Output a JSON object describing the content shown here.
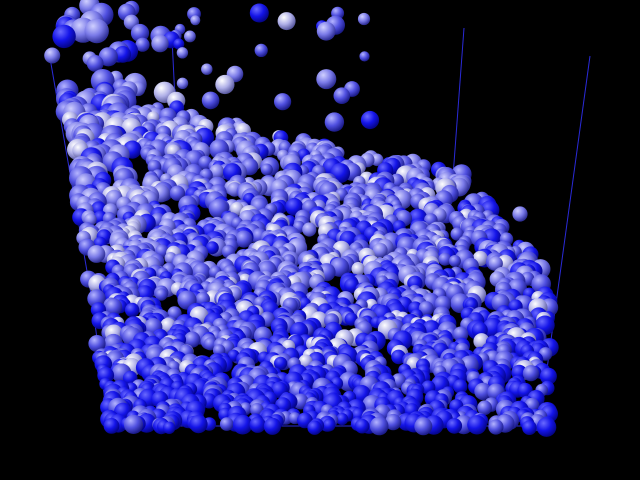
{
  "scene": {
    "background": "#000000",
    "container_line_color": "#2a2ad8",
    "particle_palette": {
      "deep": "#0a0af0",
      "mid": "#5a5ae6",
      "pale": "#c8c8ee"
    }
  }
}
